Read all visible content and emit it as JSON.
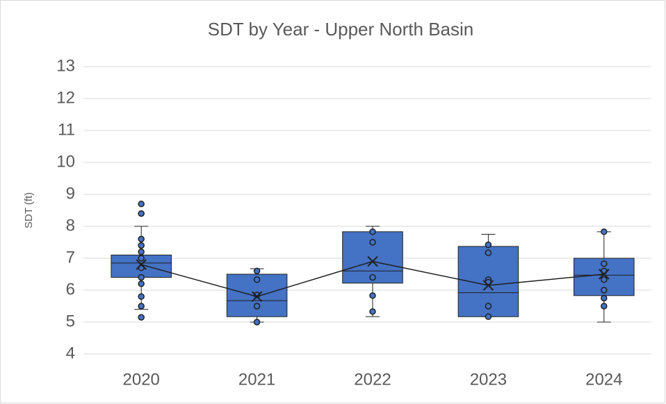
{
  "chart_data": {
    "type": "box",
    "title": "SDT by Year - Upper North Basin",
    "y_label": "SDT (ft)",
    "categories": [
      "2020",
      "2021",
      "2022",
      "2023",
      "2024"
    ],
    "color": "#4472c4",
    "grid": true,
    "ylim": [
      4,
      13
    ],
    "yticks": [
      4,
      5,
      6,
      7,
      8,
      9,
      10,
      11,
      12,
      13
    ],
    "boxes": [
      {
        "min": 5.4,
        "q1": 6.4,
        "median": 6.85,
        "q3": 7.1,
        "max": 8.0,
        "mean": 6.8,
        "points": [
          8.7,
          8.4,
          7.6,
          7.4,
          7.2,
          7.0,
          6.7,
          6.4,
          6.2,
          5.8,
          5.5,
          5.15
        ]
      },
      {
        "min": 5.0,
        "q1": 5.17,
        "median": 5.67,
        "q3": 6.5,
        "max": 6.67,
        "mean": 5.8,
        "points": [
          6.6,
          6.33,
          5.85,
          5.5,
          5.0
        ]
      },
      {
        "min": 5.17,
        "q1": 6.22,
        "median": 6.6,
        "q3": 7.83,
        "max": 8.0,
        "mean": 6.9,
        "points": [
          7.83,
          7.5,
          6.4,
          5.83,
          5.33
        ]
      },
      {
        "min": 5.17,
        "q1": 5.17,
        "median": 5.92,
        "q3": 7.37,
        "max": 7.75,
        "mean": 6.15,
        "points": [
          7.42,
          7.17,
          6.33,
          6.25,
          5.5,
          5.17
        ]
      },
      {
        "min": 5.0,
        "q1": 5.83,
        "median": 6.47,
        "q3": 7.0,
        "max": 7.83,
        "mean": 6.5,
        "points": [
          7.83,
          6.83,
          6.6,
          6.33,
          6.0,
          5.75,
          5.5
        ]
      }
    ]
  }
}
